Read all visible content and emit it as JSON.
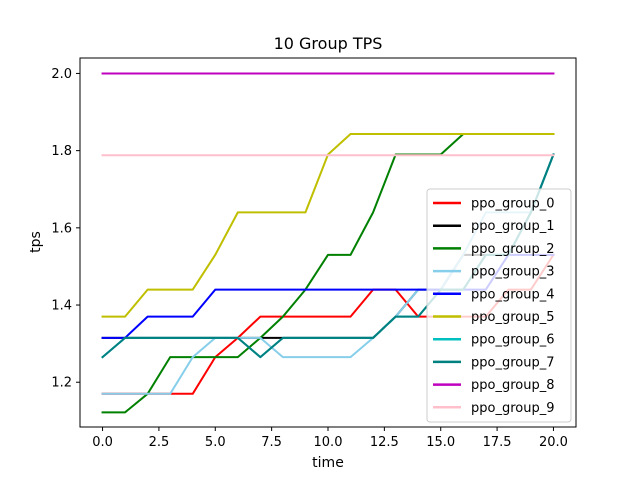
{
  "chart_data": {
    "type": "line",
    "title": "10 Group TPS",
    "xlabel": "time",
    "ylabel": "tps",
    "xlim": [
      -1.0,
      21.0
    ],
    "ylim": [
      1.084,
      2.04
    ],
    "xticks": [
      0,
      2.5,
      5,
      7.5,
      10,
      12.5,
      15,
      17.5,
      20
    ],
    "xtick_labels": [
      "0.0",
      "2.5",
      "5.0",
      "7.5",
      "10.0",
      "12.5",
      "15.0",
      "17.5",
      "20.0"
    ],
    "yticks": [
      1.2,
      1.4,
      1.6,
      1.8,
      2.0
    ],
    "ytick_labels": [
      "1.2",
      "1.4",
      "1.6",
      "1.8",
      "2.0"
    ],
    "grid": false,
    "legend_position": "lower-right",
    "x": [
      0,
      1,
      2,
      3,
      4,
      5,
      6,
      7,
      8,
      9,
      10,
      11,
      12,
      13,
      14,
      15,
      16,
      17,
      18,
      19,
      20
    ],
    "series": [
      {
        "name": "ppo_group_0",
        "color": "#ff0000",
        "values": [
          1.17,
          1.17,
          1.17,
          1.17,
          1.17,
          1.265,
          1.315,
          1.37,
          1.37,
          1.37,
          1.37,
          1.37,
          1.44,
          1.44,
          1.37,
          1.37,
          1.37,
          1.37,
          1.44,
          1.44,
          1.53
        ]
      },
      {
        "name": "ppo_group_1",
        "color": "#000000",
        "values": [
          1.315,
          1.315,
          1.315,
          1.315,
          1.315,
          1.315,
          1.315,
          1.315,
          1.315,
          1.315,
          1.315,
          1.315,
          1.315,
          1.37,
          1.44,
          1.44,
          1.53,
          1.53,
          1.53,
          1.64,
          1.79
        ]
      },
      {
        "name": "ppo_group_2",
        "color": "#008000",
        "values": [
          1.122,
          1.122,
          1.17,
          1.265,
          1.265,
          1.265,
          1.265,
          1.315,
          1.37,
          1.44,
          1.53,
          1.53,
          1.64,
          1.79,
          1.79,
          1.79,
          1.843,
          1.843,
          1.843,
          1.843,
          1.843
        ]
      },
      {
        "name": "ppo_group_3",
        "color": "#87ceeb",
        "values": [
          1.17,
          1.17,
          1.17,
          1.17,
          1.265,
          1.315,
          1.315,
          1.315,
          1.265,
          1.265,
          1.265,
          1.265,
          1.315,
          1.37,
          1.44,
          1.44,
          1.53,
          1.64,
          1.64,
          1.64,
          1.79
        ]
      },
      {
        "name": "ppo_group_4",
        "color": "#0000ff",
        "values": [
          1.315,
          1.315,
          1.37,
          1.37,
          1.37,
          1.44,
          1.44,
          1.44,
          1.44,
          1.44,
          1.44,
          1.44,
          1.44,
          1.44,
          1.44,
          1.44,
          1.44,
          1.44,
          1.53,
          1.53,
          1.53
        ]
      },
      {
        "name": "ppo_group_5",
        "color": "#bfbf00",
        "values": [
          1.37,
          1.37,
          1.44,
          1.44,
          1.44,
          1.53,
          1.64,
          1.64,
          1.64,
          1.64,
          1.79,
          1.843,
          1.843,
          1.843,
          1.843,
          1.843,
          1.843,
          1.843,
          1.843,
          1.843,
          1.843
        ]
      },
      {
        "name": "ppo_group_6",
        "color": "#00bfbf",
        "values": [
          1.265,
          1.315,
          1.315,
          1.315,
          1.315,
          1.315,
          1.315,
          1.265,
          1.315,
          1.315,
          1.315,
          1.315,
          1.315,
          1.37,
          1.37,
          1.44,
          1.44,
          1.53,
          1.53,
          1.64,
          1.79
        ]
      },
      {
        "name": "ppo_group_7",
        "color": "#008080",
        "values": [
          1.265,
          1.315,
          1.315,
          1.315,
          1.315,
          1.315,
          1.315,
          1.265,
          1.315,
          1.315,
          1.315,
          1.315,
          1.315,
          1.37,
          1.37,
          1.44,
          1.44,
          1.53,
          1.53,
          1.64,
          1.79
        ]
      },
      {
        "name": "ppo_group_8",
        "color": "#bf00bf",
        "values": [
          2.0,
          2.0,
          2.0,
          2.0,
          2.0,
          2.0,
          2.0,
          2.0,
          2.0,
          2.0,
          2.0,
          2.0,
          2.0,
          2.0,
          2.0,
          2.0,
          2.0,
          2.0,
          2.0,
          2.0,
          2.0
        ]
      },
      {
        "name": "ppo_group_9",
        "color": "#ffc0cb",
        "values": [
          1.788,
          1.788,
          1.788,
          1.788,
          1.788,
          1.788,
          1.788,
          1.788,
          1.788,
          1.788,
          1.788,
          1.788,
          1.788,
          1.788,
          1.788,
          1.788,
          1.788,
          1.788,
          1.788,
          1.788,
          1.788
        ]
      }
    ]
  }
}
